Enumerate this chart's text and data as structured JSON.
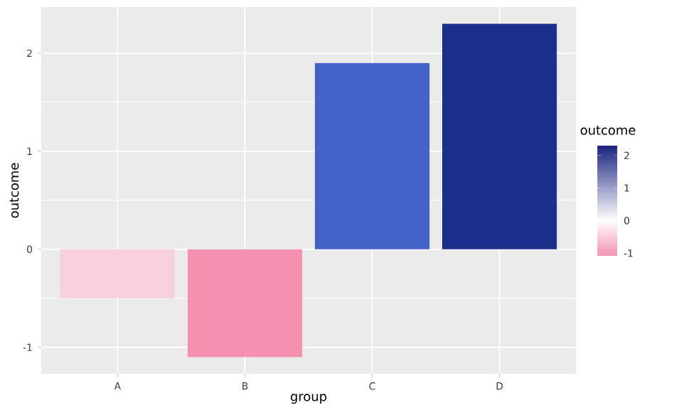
{
  "chart_data": {
    "type": "bar",
    "xlabel": "group",
    "ylabel": "outcome",
    "clabel": "outcome",
    "categories": [
      "A",
      "B",
      "C",
      "D"
    ],
    "values": [
      -0.5,
      -1.1,
      1.9,
      2.3
    ],
    "colors": [
      "#f8d0dd",
      "#f391ae",
      "#4362c8",
      "#1a2e8a"
    ],
    "ylim": [
      -1.27,
      2.47
    ],
    "yticks": [
      -1,
      0,
      1,
      2
    ],
    "clim": [
      -1.1,
      2.3
    ],
    "cticks": [
      -1,
      0,
      1,
      2
    ],
    "grid": true
  }
}
